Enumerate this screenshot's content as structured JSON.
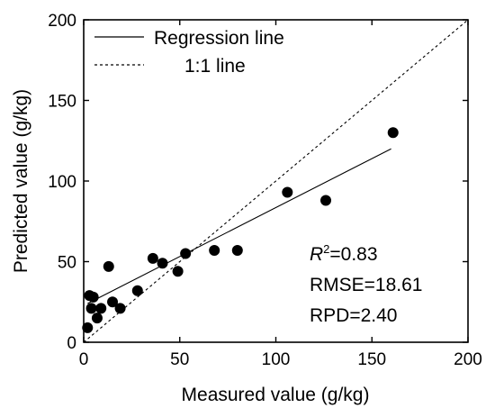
{
  "chart_data": {
    "type": "scatter",
    "title": "",
    "xlabel": "Measured value (g/kg)",
    "ylabel": "Predicted value (g/kg)",
    "xlim": [
      0,
      200
    ],
    "ylim": [
      0,
      200
    ],
    "xticks": [
      "0",
      "50",
      "100",
      "150",
      "200"
    ],
    "yticks": [
      "0",
      "50",
      "100",
      "150",
      "200"
    ],
    "grid": false,
    "legend_position": "top-left",
    "legend": [
      {
        "label": "Regression line",
        "style": "solid"
      },
      {
        "label": "1:1 line",
        "style": "dashed"
      }
    ],
    "points": [
      {
        "x": 2,
        "y": 9
      },
      {
        "x": 3,
        "y": 29
      },
      {
        "x": 4,
        "y": 21
      },
      {
        "x": 5,
        "y": 28
      },
      {
        "x": 7,
        "y": 15
      },
      {
        "x": 9,
        "y": 21
      },
      {
        "x": 13,
        "y": 47
      },
      {
        "x": 15,
        "y": 25
      },
      {
        "x": 19,
        "y": 21
      },
      {
        "x": 28,
        "y": 32
      },
      {
        "x": 36,
        "y": 52
      },
      {
        "x": 41,
        "y": 49
      },
      {
        "x": 49,
        "y": 44
      },
      {
        "x": 53,
        "y": 55
      },
      {
        "x": 68,
        "y": 57
      },
      {
        "x": 80,
        "y": 57
      },
      {
        "x": 106,
        "y": 93
      },
      {
        "x": 126,
        "y": 88
      },
      {
        "x": 161,
        "y": 130
      }
    ],
    "regression_line": {
      "x": [
        2,
        160
      ],
      "y": [
        24,
        120
      ]
    },
    "identity_line": {
      "x": [
        0,
        200
      ],
      "y": [
        0,
        200
      ]
    },
    "annotations": {
      "r2_symbol": "R",
      "r2_sup": "2",
      "r2_value": "=0.83",
      "rmse": "RMSE=18.61",
      "rpd": "RPD=2.40"
    },
    "colors": {
      "points": "#000000",
      "lines": "#000000",
      "background": "#ffffff"
    }
  }
}
